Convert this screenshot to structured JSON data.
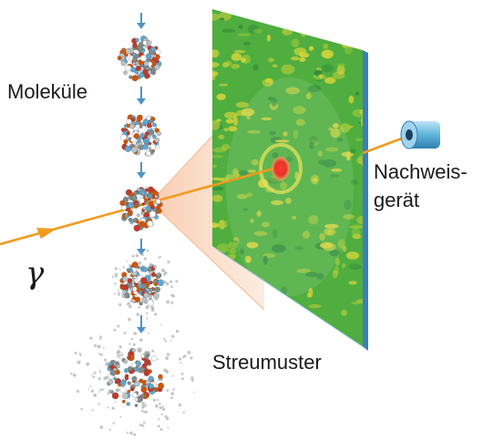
{
  "labels": {
    "molecules": "Moleküle",
    "detector_line1": "Nachweis-",
    "detector_line2": "gerät",
    "pattern": "Streumuster",
    "photon_symbol": "γ"
  },
  "colors": {
    "beam": "#f29a1f",
    "arrow": "#4f93c6",
    "screen_green": "#4fae3f",
    "screen_yellow": "#d8d43a",
    "hotspot": "#e5332a",
    "detector": "#5fb3d9"
  },
  "molecule_stages": [
    {
      "state": "intact"
    },
    {
      "state": "intact"
    },
    {
      "state": "hit"
    },
    {
      "state": "disintegrating"
    },
    {
      "state": "exploded"
    }
  ]
}
